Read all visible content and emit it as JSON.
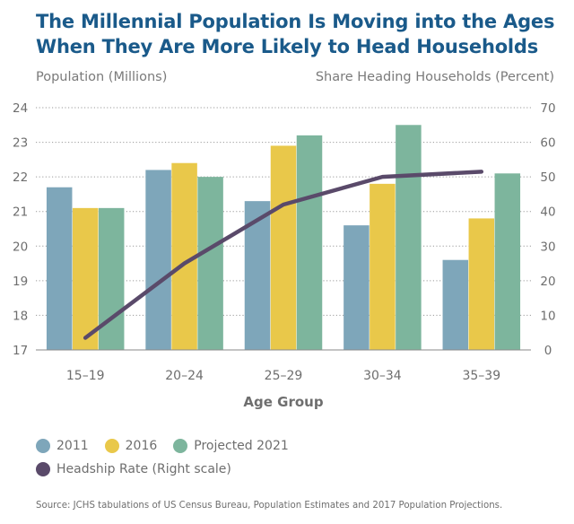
{
  "title": "The Millennial Population Is Moving into the Ages When They Are More Likely to Head Households",
  "left_axis_title": "Population (Millions)",
  "right_axis_title": "Share Heading Households (Percent)",
  "legend": {
    "row1": [
      {
        "label": "2011",
        "color": "#7ea6ba"
      },
      {
        "label": "2016",
        "color": "#e9c84a"
      },
      {
        "label": "Projected 2021",
        "color": "#7db59d"
      }
    ],
    "row2": [
      {
        "label": "Headship Rate (Right scale)",
        "color": "#5a4a6a"
      }
    ]
  },
  "source": "Source: JCHS tabulations of US Census Bureau, Population Estimates and 2017 Population Projections.",
  "chart_data": {
    "type": "bar",
    "categories": [
      "15–19",
      "20–24",
      "25–29",
      "30–34",
      "35–39"
    ],
    "xlabel": "Age Group",
    "ylabel": "Population (Millions)",
    "ylim": [
      17,
      24
    ],
    "y_ticks": [
      17,
      18,
      19,
      20,
      21,
      22,
      23,
      24
    ],
    "y2label": "Share Heading Households (Percent)",
    "y2lim": [
      0,
      70
    ],
    "y2_ticks": [
      0,
      10,
      20,
      30,
      40,
      50,
      60,
      70
    ],
    "grid": "horizontal dotted",
    "series": [
      {
        "name": "2011",
        "color": "#7ea6ba",
        "values": [
          21.7,
          22.2,
          21.3,
          20.6,
          19.6
        ]
      },
      {
        "name": "2016",
        "color": "#e9c84a",
        "values": [
          21.1,
          22.4,
          22.9,
          21.8,
          20.8
        ]
      },
      {
        "name": "Projected 2021",
        "color": "#7db59d",
        "values": [
          21.1,
          22.0,
          23.2,
          23.5,
          22.1
        ]
      }
    ],
    "line_series": {
      "name": "Headship Rate (Right scale)",
      "color": "#5a4a6a",
      "axis": "right",
      "values": [
        3.5,
        25,
        42,
        50,
        51.5
      ]
    }
  }
}
